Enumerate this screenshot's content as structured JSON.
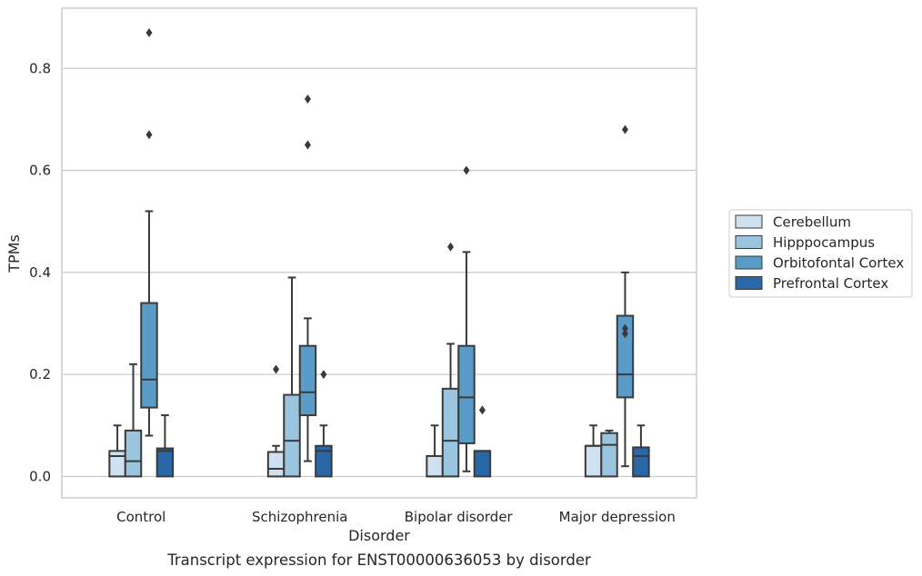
{
  "chart_data": {
    "type": "box",
    "caption": "Transcript expression for ENST00000636053 by disorder",
    "xlabel": "Disorder",
    "ylabel": "TPMs",
    "ylim": [
      -0.042,
      0.918
    ],
    "yticks": [
      0.0,
      0.2,
      0.4,
      0.6,
      0.8
    ],
    "ytick_labels": [
      "0.0",
      "0.2",
      "0.4",
      "0.6",
      "0.8"
    ],
    "grid": "horizontal",
    "legend_position": "right",
    "categories": [
      "Control",
      "Schizophrenia",
      "Bipolar disorder",
      "Major depression"
    ],
    "series": [
      {
        "name": "Cerebellum",
        "color": "#cfe0f1",
        "boxes": [
          {
            "whisker_low": 0.0,
            "q1": 0.0,
            "median": 0.04,
            "q3": 0.05,
            "whisker_high": 0.1,
            "outliers": []
          },
          {
            "whisker_low": 0.0,
            "q1": 0.0,
            "median": 0.015,
            "q3": 0.048,
            "whisker_high": 0.06,
            "outliers": [
              0.21
            ]
          },
          {
            "whisker_low": 0.0,
            "q1": 0.0,
            "median": 0.0,
            "q3": 0.04,
            "whisker_high": 0.1,
            "outliers": []
          },
          {
            "whisker_low": 0.0,
            "q1": 0.0,
            "median": 0.06,
            "q3": 0.06,
            "whisker_high": 0.1,
            "outliers": []
          }
        ]
      },
      {
        "name": "Hipppocampus",
        "color": "#9bc4de",
        "boxes": [
          {
            "whisker_low": 0.0,
            "q1": 0.0,
            "median": 0.03,
            "q3": 0.09,
            "whisker_high": 0.22,
            "outliers": []
          },
          {
            "whisker_low": 0.0,
            "q1": 0.0,
            "median": 0.07,
            "q3": 0.16,
            "whisker_high": 0.39,
            "outliers": []
          },
          {
            "whisker_low": 0.0,
            "q1": 0.0,
            "median": 0.07,
            "q3": 0.172,
            "whisker_high": 0.26,
            "outliers": [
              0.45
            ]
          },
          {
            "whisker_low": 0.0,
            "q1": 0.0,
            "median": 0.062,
            "q3": 0.085,
            "whisker_high": 0.09,
            "outliers": []
          }
        ]
      },
      {
        "name": "Orbitofontal Cortex",
        "color": "#5a9bc7",
        "boxes": [
          {
            "whisker_low": 0.08,
            "q1": 0.135,
            "median": 0.19,
            "q3": 0.34,
            "whisker_high": 0.52,
            "outliers": [
              0.67,
              0.87
            ]
          },
          {
            "whisker_low": 0.03,
            "q1": 0.12,
            "median": 0.165,
            "q3": 0.256,
            "whisker_high": 0.31,
            "outliers": [
              0.65,
              0.74
            ]
          },
          {
            "whisker_low": 0.01,
            "q1": 0.065,
            "median": 0.155,
            "q3": 0.256,
            "whisker_high": 0.44,
            "outliers": [
              0.6
            ]
          },
          {
            "whisker_low": 0.02,
            "q1": 0.155,
            "median": 0.2,
            "q3": 0.315,
            "whisker_high": 0.4,
            "outliers": [
              0.28,
              0.29,
              0.68
            ]
          }
        ]
      },
      {
        "name": "Prefrontal Cortex",
        "color": "#2867a8",
        "boxes": [
          {
            "whisker_low": 0.0,
            "q1": 0.0,
            "median": 0.05,
            "q3": 0.055,
            "whisker_high": 0.12,
            "outliers": []
          },
          {
            "whisker_low": 0.0,
            "q1": 0.0,
            "median": 0.05,
            "q3": 0.06,
            "whisker_high": 0.1,
            "outliers": [
              0.2
            ]
          },
          {
            "whisker_low": 0.0,
            "q1": 0.0,
            "median": 0.05,
            "q3": 0.05,
            "whisker_high": 0.05,
            "outliers": [
              0.13
            ]
          },
          {
            "whisker_low": 0.0,
            "q1": 0.0,
            "median": 0.04,
            "q3": 0.057,
            "whisker_high": 0.1,
            "outliers": []
          }
        ]
      }
    ]
  }
}
